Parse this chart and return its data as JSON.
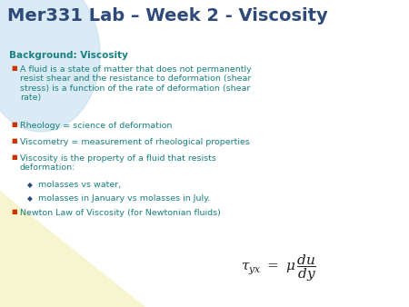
{
  "title": "Mer331 Lab – Week 2 - Viscosity",
  "title_color": "#2e4a7a",
  "title_fontsize": 14,
  "bg_color": "#ffffff",
  "circle_color": "#b8d8ec",
  "bottom_color": "#f5f2b8",
  "heading": "Background: Viscosity",
  "heading_color": "#1a8080",
  "heading_fontsize": 7.5,
  "bullet_color": "#1a8080",
  "bullet_marker_color": "#cc3300",
  "sub_bullet_marker_color": "#2e4a7a",
  "bullet_fontsize": 6.8,
  "sub_bullet_fontsize": 6.8,
  "bullets": [
    "A fluid is a state of matter that does not permanently\nresist shear and the resistance to deformation (shear\nstress) is a function of the rate of deformation (shear\nrate)",
    "Rheology = science of deformation",
    "Viscometry = measurement of rheological properties",
    "Viscosity is the property of a fluid that resists\ndeformation:",
    "Newton Law of Viscosity (for Newtonian fluids)"
  ],
  "sub_bullets": [
    "molasses vs water,",
    "molasses in January vs molasses in July."
  ],
  "equation_color": "#222222",
  "equation_fontsize": 11
}
